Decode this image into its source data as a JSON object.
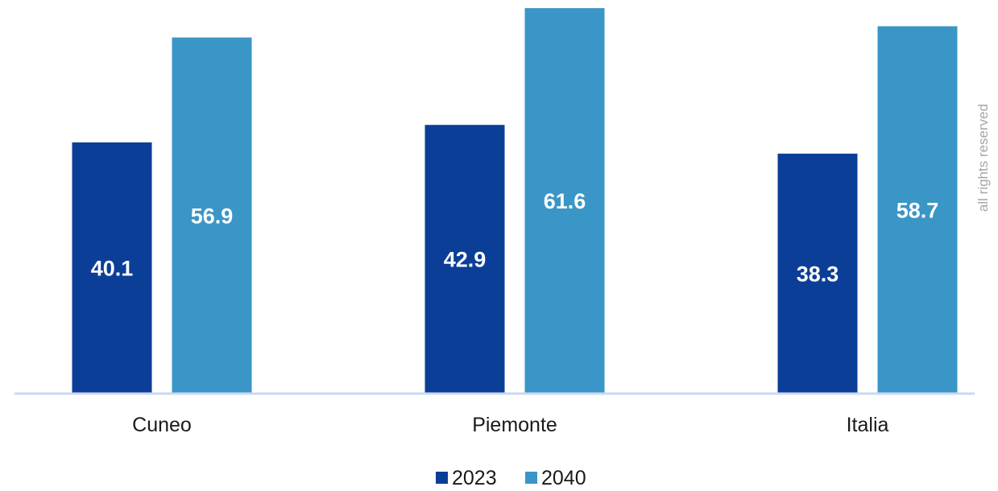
{
  "chart_data": {
    "type": "bar",
    "categories": [
      "Cuneo",
      "Piemonte",
      "Italia"
    ],
    "series": [
      {
        "name": "2023",
        "values": [
          40.1,
          42.9,
          38.3
        ],
        "color": "#0b3e97"
      },
      {
        "name": "2040",
        "values": [
          56.9,
          61.6,
          58.7
        ],
        "color": "#3a96c6"
      }
    ],
    "ylim": [
      0,
      62
    ],
    "grid": false,
    "legend": "bottom-center",
    "baseline_color": "#c9d9f2"
  },
  "watermark": "all rights reserved"
}
